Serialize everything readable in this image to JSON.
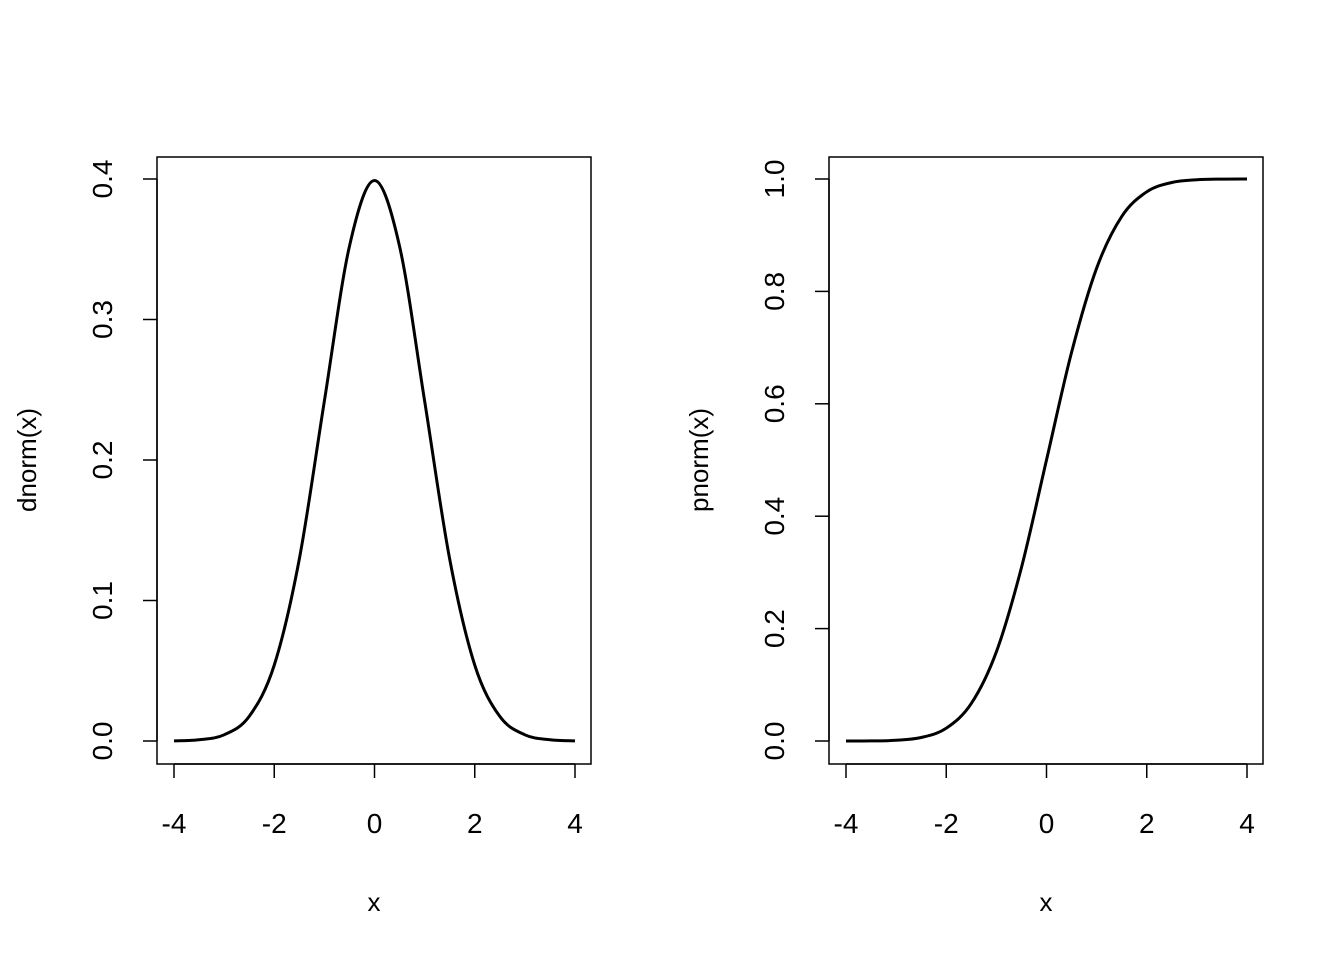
{
  "chart_data": [
    {
      "type": "line",
      "title": "",
      "xlabel": "x",
      "ylabel": "dnorm(x)",
      "xlim": [
        -4,
        4
      ],
      "ylim": [
        0,
        0.4
      ],
      "xticks": [
        -4,
        -2,
        0,
        2,
        4
      ],
      "yticks": [
        0.0,
        0.1,
        0.2,
        0.3,
        0.4
      ],
      "xtick_labels": [
        "-4",
        "-2",
        "0",
        "2",
        "4"
      ],
      "ytick_labels": [
        "0.0",
        "0.1",
        "0.2",
        "0.3",
        "0.4"
      ],
      "grid": false,
      "series": [
        {
          "x": [
            -4,
            -3.5,
            -3,
            -2.5,
            -2,
            -1.5,
            -1,
            -0.5,
            0,
            0.5,
            1,
            1.5,
            2,
            2.5,
            3,
            3.5,
            4
          ],
          "y": [
            0.0001,
            0.0009,
            0.0044,
            0.0175,
            0.054,
            0.1295,
            0.242,
            0.3521,
            0.3989,
            0.3521,
            0.242,
            0.1295,
            0.054,
            0.0175,
            0.0044,
            0.0009,
            0.0001
          ]
        }
      ]
    },
    {
      "type": "line",
      "title": "",
      "xlabel": "x",
      "ylabel": "pnorm(x)",
      "xlim": [
        -4,
        4
      ],
      "ylim": [
        0,
        1
      ],
      "xticks": [
        -4,
        -2,
        0,
        2,
        4
      ],
      "yticks": [
        0.0,
        0.2,
        0.4,
        0.6,
        0.8,
        1.0
      ],
      "xtick_labels": [
        "-4",
        "-2",
        "0",
        "2",
        "4"
      ],
      "ytick_labels": [
        "0.0",
        "0.2",
        "0.4",
        "0.6",
        "0.8",
        "1.0"
      ],
      "grid": false,
      "series": [
        {
          "x": [
            -4,
            -3.5,
            -3,
            -2.5,
            -2,
            -1.5,
            -1,
            -0.5,
            0,
            0.5,
            1,
            1.5,
            2,
            2.5,
            3,
            3.5,
            4
          ],
          "y": [
            0.0,
            0.0002,
            0.0013,
            0.0062,
            0.0228,
            0.0668,
            0.1587,
            0.3085,
            0.5,
            0.6915,
            0.8413,
            0.9332,
            0.9772,
            0.9938,
            0.9987,
            0.9998,
            1.0
          ]
        }
      ]
    }
  ]
}
